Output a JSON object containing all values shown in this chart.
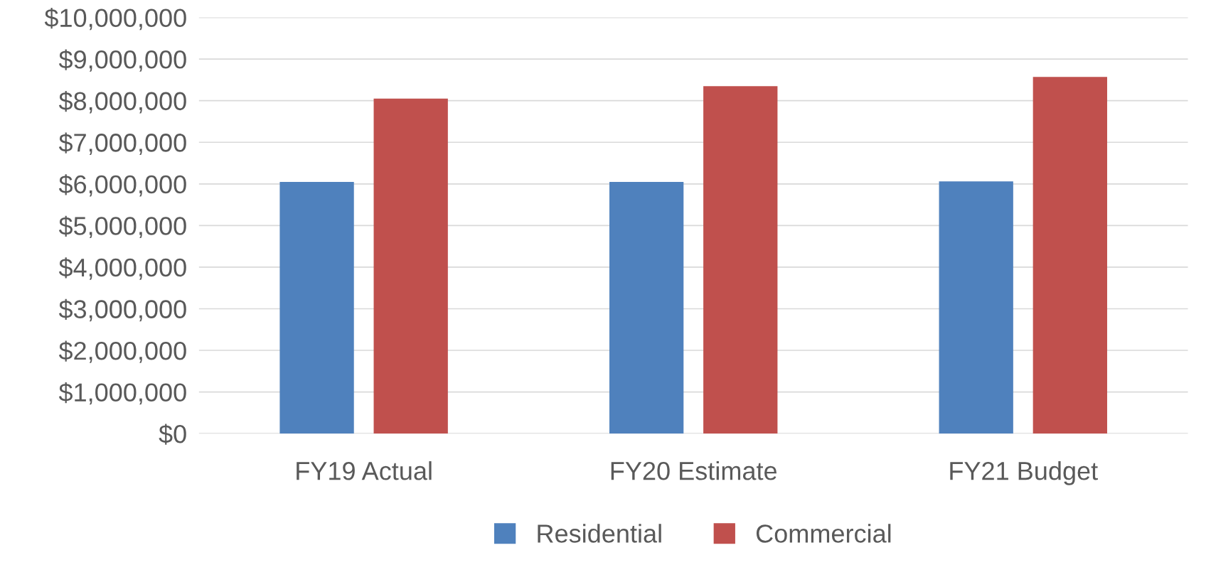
{
  "chart_data": {
    "type": "bar",
    "categories": [
      "FY19 Actual",
      "FY20 Estimate",
      "FY21 Budget"
    ],
    "series": [
      {
        "name": "Residential",
        "color": "#4f81bd",
        "values": [
          6050000,
          6050000,
          6060000
        ]
      },
      {
        "name": "Commercial",
        "color": "#c0504d",
        "values": [
          8050000,
          8350000,
          8570000
        ]
      }
    ],
    "ylim": [
      0,
      10000000
    ],
    "yticks": [
      {
        "value": 0,
        "label": "$0"
      },
      {
        "value": 1000000,
        "label": "$1,000,000"
      },
      {
        "value": 2000000,
        "label": "$2,000,000"
      },
      {
        "value": 3000000,
        "label": "$3,000,000"
      },
      {
        "value": 4000000,
        "label": "$4,000,000"
      },
      {
        "value": 5000000,
        "label": "$5,000,000"
      },
      {
        "value": 6000000,
        "label": "$6,000,000"
      },
      {
        "value": 7000000,
        "label": "$7,000,000"
      },
      {
        "value": 8000000,
        "label": "$8,000,000"
      },
      {
        "value": 9000000,
        "label": "$9,000,000"
      },
      {
        "value": 10000000,
        "label": "$10,000,000"
      }
    ],
    "grid": "y",
    "legend": "bottom"
  }
}
